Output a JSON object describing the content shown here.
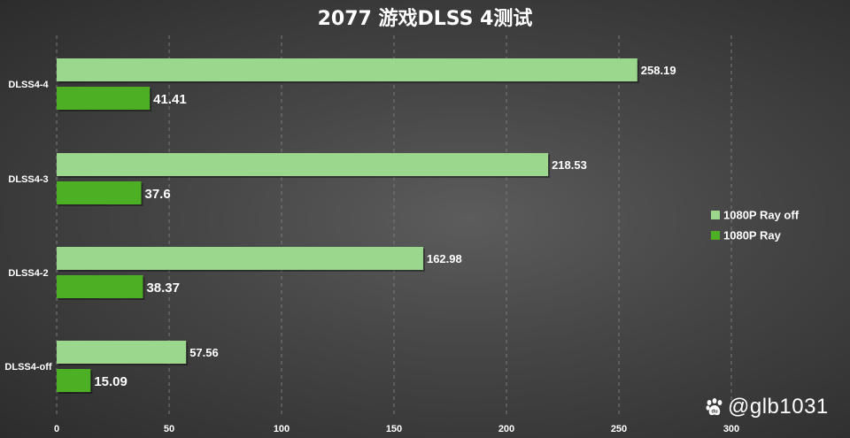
{
  "chart_data": {
    "type": "bar",
    "orientation": "horizontal",
    "title": "2077 游戏DLSS 4测试",
    "categories": [
      "DLSS4-4",
      "DLSS4-3",
      "DLSS4-2",
      "DLSS4-off"
    ],
    "series": [
      {
        "name": "1080P Ray off",
        "values": [
          258.19,
          218.53,
          162.98,
          57.56
        ],
        "color": "#9bd88d"
      },
      {
        "name": "1080P Ray",
        "values": [
          41.41,
          37.6,
          38.37,
          15.09
        ],
        "color": "#4daf23"
      }
    ],
    "value_labels": [
      [
        "258.19",
        "218.53",
        "162.98",
        "57.56"
      ],
      [
        "41.41",
        "37.6",
        "38.37",
        "15.09"
      ]
    ],
    "xlim": [
      0,
      300
    ],
    "xticks": [
      "0",
      "50",
      "100",
      "150",
      "200",
      "250",
      "300"
    ],
    "xtick_values": [
      0,
      50,
      100,
      150,
      200,
      250,
      300
    ],
    "grid": true,
    "legend_position": "right"
  },
  "watermark": {
    "text": "@glb1031",
    "icon": "paw-icon"
  }
}
